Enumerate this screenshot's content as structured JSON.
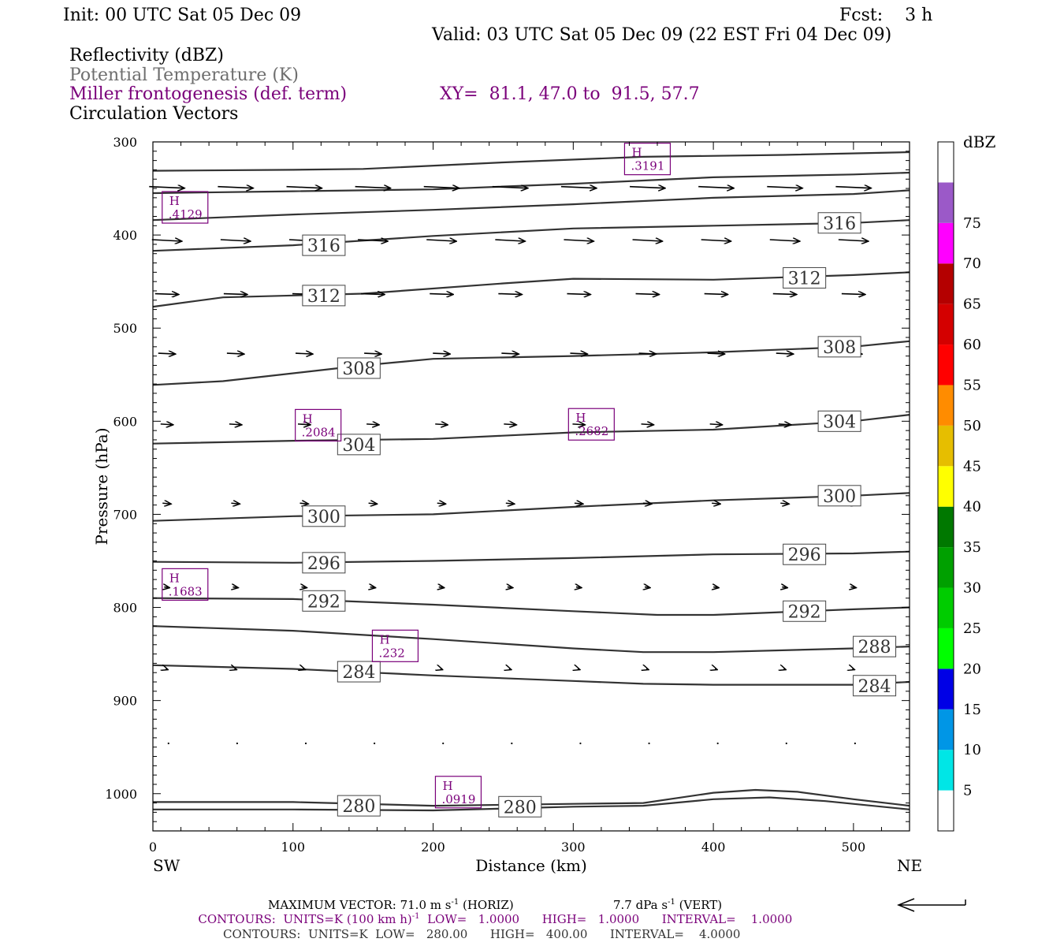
{
  "header": {
    "init": "Init: 00 UTC Sat 05 Dec 09",
    "fcst": "Fcst:    3 h",
    "valid": "Valid: 03 UTC Sat 05 Dec 09 (22 EST Fri 04 Dec 09)",
    "field1": "Reflectivity (dBZ)",
    "field2": "Potential Temperature (K)",
    "field3": "Miller frontogenesis (def. term)",
    "xy": "XY=  81.1, 47.0 to  91.5, 57.7",
    "field4": "Circulation Vectors"
  },
  "colors": {
    "theta": "#333333",
    "fronto": "#7a007a",
    "field2_text": "#6e6e6e",
    "vector": "#000000"
  },
  "footer": {
    "maxvec_a": "MAXIMUM VECTOR:  71.0 m s",
    "maxvec_b": " (HORIZ)",
    "maxvec_c": "7.7 dPa s",
    "maxvec_d": " (VERT)",
    "sup": "-1",
    "cont1_a": "CONTOURS:  UNITS=K (100 km h)",
    "cont1_b": "LOW=   1.0000      HIGH=   1.0000      INTERVAL=    1.0000",
    "cont2": "CONTOURS:  UNITS=K  LOW=   280.00      HIGH=   400.00      INTERVAL=    4.0000"
  },
  "chart_data": {
    "type": "line",
    "xlabel": "Distance (km)",
    "ylabel": "Pressure (hPa)",
    "xlim": [
      0,
      540
    ],
    "ylim": [
      300,
      1040
    ],
    "y_reversed": true,
    "x_ticks": [
      "0",
      "100",
      "200",
      "300",
      "400",
      "500"
    ],
    "y_ticks": [
      "300",
      "400",
      "500",
      "600",
      "700",
      "800",
      "900",
      "1000"
    ],
    "left_label": "SW",
    "right_label": "NE",
    "colorbar": {
      "title": "dBZ",
      "labels": [
        "5",
        "10",
        "15",
        "20",
        "25",
        "30",
        "35",
        "40",
        "45",
        "50",
        "55",
        "60",
        "65",
        "70",
        "75"
      ],
      "colors": [
        "#ffffff",
        "#00e6e6",
        "#0096e6",
        "#0000e6",
        "#00ff00",
        "#00cc00",
        "#00a000",
        "#007800",
        "#ffff00",
        "#e6be00",
        "#ff8c00",
        "#ff0000",
        "#d40000",
        "#b40000",
        "#ff00ff",
        "#9b59c8",
        "#ffffff"
      ]
    },
    "theta_contours": [
      {
        "label": "",
        "points": [
          [
            0,
            331
          ],
          [
            100,
            330
          ],
          [
            150,
            329
          ],
          [
            250,
            322
          ],
          [
            350,
            316
          ],
          [
            450,
            314
          ],
          [
            540,
            311
          ]
        ]
      },
      {
        "label": "",
        "points": [
          [
            0,
            355
          ],
          [
            100,
            353
          ],
          [
            200,
            351
          ],
          [
            300,
            345
          ],
          [
            400,
            338
          ],
          [
            500,
            335
          ],
          [
            540,
            333
          ]
        ]
      },
      {
        "label": "",
        "points": [
          [
            0,
            384
          ],
          [
            100,
            378
          ],
          [
            200,
            373
          ],
          [
            300,
            367
          ],
          [
            400,
            360
          ],
          [
            500,
            356
          ],
          [
            540,
            352
          ]
        ]
      },
      {
        "label": "316",
        "labels_at": [
          [
            122,
            411
          ],
          [
            490,
            387
          ]
        ],
        "points": [
          [
            0,
            417
          ],
          [
            100,
            411
          ],
          [
            200,
            401
          ],
          [
            300,
            393
          ],
          [
            400,
            390
          ],
          [
            500,
            387
          ],
          [
            540,
            384
          ]
        ]
      },
      {
        "label": "312",
        "labels_at": [
          [
            122,
            465
          ],
          [
            465,
            446
          ]
        ],
        "points": [
          [
            0,
            477
          ],
          [
            50,
            467
          ],
          [
            150,
            463
          ],
          [
            250,
            452
          ],
          [
            300,
            447
          ],
          [
            400,
            448
          ],
          [
            500,
            443
          ],
          [
            540,
            440
          ]
        ]
      },
      {
        "label": "308",
        "labels_at": [
          [
            147,
            543
          ],
          [
            490,
            520
          ]
        ],
        "points": [
          [
            0,
            561
          ],
          [
            50,
            557
          ],
          [
            150,
            540
          ],
          [
            200,
            533
          ],
          [
            300,
            530
          ],
          [
            400,
            526
          ],
          [
            500,
            520
          ],
          [
            540,
            514
          ]
        ]
      },
      {
        "label": "304",
        "labels_at": [
          [
            147,
            625
          ],
          [
            490,
            600
          ]
        ],
        "points": [
          [
            0,
            624
          ],
          [
            100,
            621
          ],
          [
            200,
            619
          ],
          [
            300,
            612
          ],
          [
            400,
            609
          ],
          [
            500,
            600
          ],
          [
            540,
            593
          ]
        ]
      },
      {
        "label": "300",
        "labels_at": [
          [
            122,
            702
          ],
          [
            490,
            680
          ]
        ],
        "points": [
          [
            0,
            707
          ],
          [
            100,
            702
          ],
          [
            200,
            700
          ],
          [
            300,
            692
          ],
          [
            400,
            685
          ],
          [
            500,
            680
          ],
          [
            540,
            677
          ]
        ]
      },
      {
        "label": "296",
        "labels_at": [
          [
            122,
            752
          ],
          [
            465,
            743
          ]
        ],
        "points": [
          [
            0,
            751
          ],
          [
            100,
            752
          ],
          [
            200,
            750
          ],
          [
            300,
            747
          ],
          [
            400,
            743
          ],
          [
            500,
            742
          ],
          [
            540,
            740
          ]
        ]
      },
      {
        "label": "292",
        "labels_at": [
          [
            122,
            793
          ],
          [
            465,
            804
          ]
        ],
        "points": [
          [
            0,
            790
          ],
          [
            100,
            791
          ],
          [
            200,
            797
          ],
          [
            300,
            804
          ],
          [
            360,
            808
          ],
          [
            400,
            808
          ],
          [
            500,
            802
          ],
          [
            540,
            800
          ]
        ]
      },
      {
        "label": "288",
        "labels_at": [
          [
            515,
            842
          ]
        ],
        "points": [
          [
            0,
            820
          ],
          [
            100,
            825
          ],
          [
            200,
            834
          ],
          [
            300,
            844
          ],
          [
            350,
            848
          ],
          [
            400,
            848
          ],
          [
            500,
            844
          ],
          [
            540,
            842
          ]
        ]
      },
      {
        "label": "284",
        "labels_at": [
          [
            147,
            869
          ],
          [
            515,
            884
          ]
        ],
        "points": [
          [
            0,
            862
          ],
          [
            100,
            866
          ],
          [
            200,
            873
          ],
          [
            300,
            879
          ],
          [
            350,
            882
          ],
          [
            400,
            883
          ],
          [
            500,
            883
          ],
          [
            540,
            880
          ]
        ]
      },
      {
        "label": "280",
        "labels_at": [
          [
            147,
            1013
          ],
          [
            262,
            1014
          ]
        ],
        "points": [
          [
            0,
            1009
          ],
          [
            100,
            1009
          ],
          [
            200,
            1013
          ],
          [
            300,
            1011
          ],
          [
            350,
            1010
          ],
          [
            400,
            999
          ],
          [
            430,
            996
          ],
          [
            460,
            998
          ],
          [
            500,
            1006
          ],
          [
            540,
            1013
          ]
        ]
      },
      {
        "label": "",
        "points": [
          [
            0,
            1017
          ],
          [
            100,
            1017
          ],
          [
            200,
            1018
          ],
          [
            300,
            1014
          ],
          [
            350,
            1013
          ],
          [
            400,
            1006
          ],
          [
            440,
            1004
          ],
          [
            480,
            1008
          ],
          [
            540,
            1017
          ]
        ]
      }
    ],
    "fronto_maxima": [
      {
        "symbol": "H",
        "value": ".3191",
        "x": 340,
        "y": 320
      },
      {
        "symbol": "H",
        "value": ".4129",
        "x": 10,
        "y": 372
      },
      {
        "symbol": "H",
        "value": ".2084",
        "x": 105,
        "y": 606
      },
      {
        "symbol": "H",
        "value": ".2682",
        "x": 300,
        "y": 605
      },
      {
        "symbol": "H",
        "value": ".1683",
        "x": 10,
        "y": 777
      },
      {
        "symbol": "H",
        "value": ".232",
        "x": 160,
        "y": 843
      },
      {
        "symbol": "H",
        "value": ".0919",
        "x": 205,
        "y": 1000
      }
    ],
    "vector_levels": [
      {
        "p": 348,
        "u": 45
      },
      {
        "p": 405,
        "u": 38
      },
      {
        "p": 463,
        "u": 30
      },
      {
        "p": 527,
        "u": 22
      },
      {
        "p": 603,
        "u": 16
      },
      {
        "p": 688,
        "u": 11
      },
      {
        "p": 778,
        "u": 7
      },
      {
        "p": 866,
        "u": 3
      },
      {
        "p": 946,
        "u": 0
      }
    ],
    "max_vector_ref": "71.0"
  }
}
